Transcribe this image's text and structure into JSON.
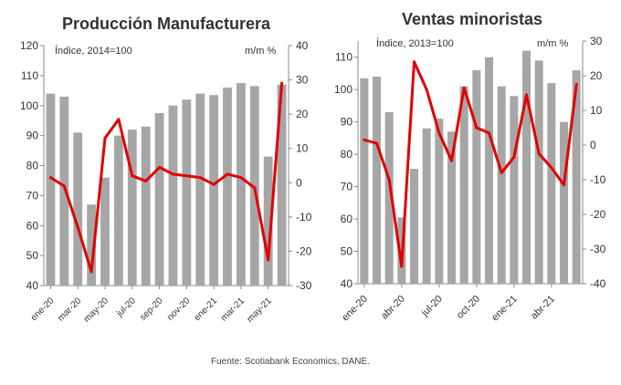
{
  "source": "Fuente: Scotiabank Economics, DANE.",
  "colors": {
    "bars": "#a6a6a6",
    "line": "#e10000",
    "axis": "#888888"
  },
  "chart_data": [
    {
      "type": "bar",
      "title": "Producción Manufacturera",
      "left_label": "Índice, 2014=100",
      "right_label": "m/m %",
      "left_ylim": [
        40,
        120
      ],
      "left_ticks": [
        "40",
        "50",
        "60",
        "70",
        "80",
        "90",
        "100",
        "110",
        "120"
      ],
      "right_ylim": [
        -30,
        40
      ],
      "right_ticks": [
        "-30",
        "-20",
        "-10",
        "0",
        "10",
        "20",
        "30",
        "40"
      ],
      "x_tick_labels": [
        "ene-20",
        "mar-20",
        "may-20",
        "jul-20",
        "sep-20",
        "nov-20",
        "ene-21",
        "mar-21",
        "may-21"
      ],
      "x_tick_every": 2,
      "grid": false,
      "series": [
        {
          "name": "Índice",
          "axis": "left",
          "kind": "bar",
          "values": [
            104,
            103,
            91,
            67,
            76,
            90,
            92,
            93,
            97.5,
            100,
            102,
            104,
            103.5,
            106,
            107.5,
            106.5,
            83,
            107
          ]
        },
        {
          "name": "m/m %",
          "axis": "right",
          "kind": "line",
          "values": [
            1.5,
            -1,
            -13,
            -26,
            13,
            18.5,
            2,
            0.5,
            4.5,
            2.5,
            2,
            1.5,
            -0.5,
            2.5,
            1.5,
            -1.5,
            -22.5,
            29
          ]
        }
      ]
    },
    {
      "type": "bar",
      "title": "Ventas minoristas",
      "left_label": "Índice, 2013=100",
      "right_label": "m/m %",
      "left_ylim": [
        40,
        115
      ],
      "left_ticks": [
        "40",
        "50",
        "60",
        "70",
        "80",
        "90",
        "100",
        "110"
      ],
      "right_ylim": [
        -40,
        30
      ],
      "right_ticks": [
        "-40",
        "-30",
        "-20",
        "-10",
        "0",
        "10",
        "20",
        "30"
      ],
      "x_tick_labels": [
        "ene-20",
        "abr-20",
        "jul-20",
        "oct-20",
        "ene-21",
        "abr-21"
      ],
      "x_tick_every": 3,
      "grid": false,
      "series": [
        {
          "name": "Índice",
          "axis": "left",
          "kind": "bar",
          "values": [
            103.5,
            104,
            93,
            60.5,
            75.5,
            88,
            91,
            87,
            101,
            106,
            110,
            101,
            98,
            112,
            109,
            102,
            90,
            106
          ]
        },
        {
          "name": "m/m %",
          "axis": "right",
          "kind": "line",
          "values": [
            1.5,
            0.5,
            -10,
            -35,
            24,
            16,
            3.5,
            -4.5,
            16.5,
            5,
            3.5,
            -8,
            -3.5,
            14.5,
            -2.5,
            -6.5,
            -11.5,
            17.5
          ]
        }
      ]
    }
  ]
}
